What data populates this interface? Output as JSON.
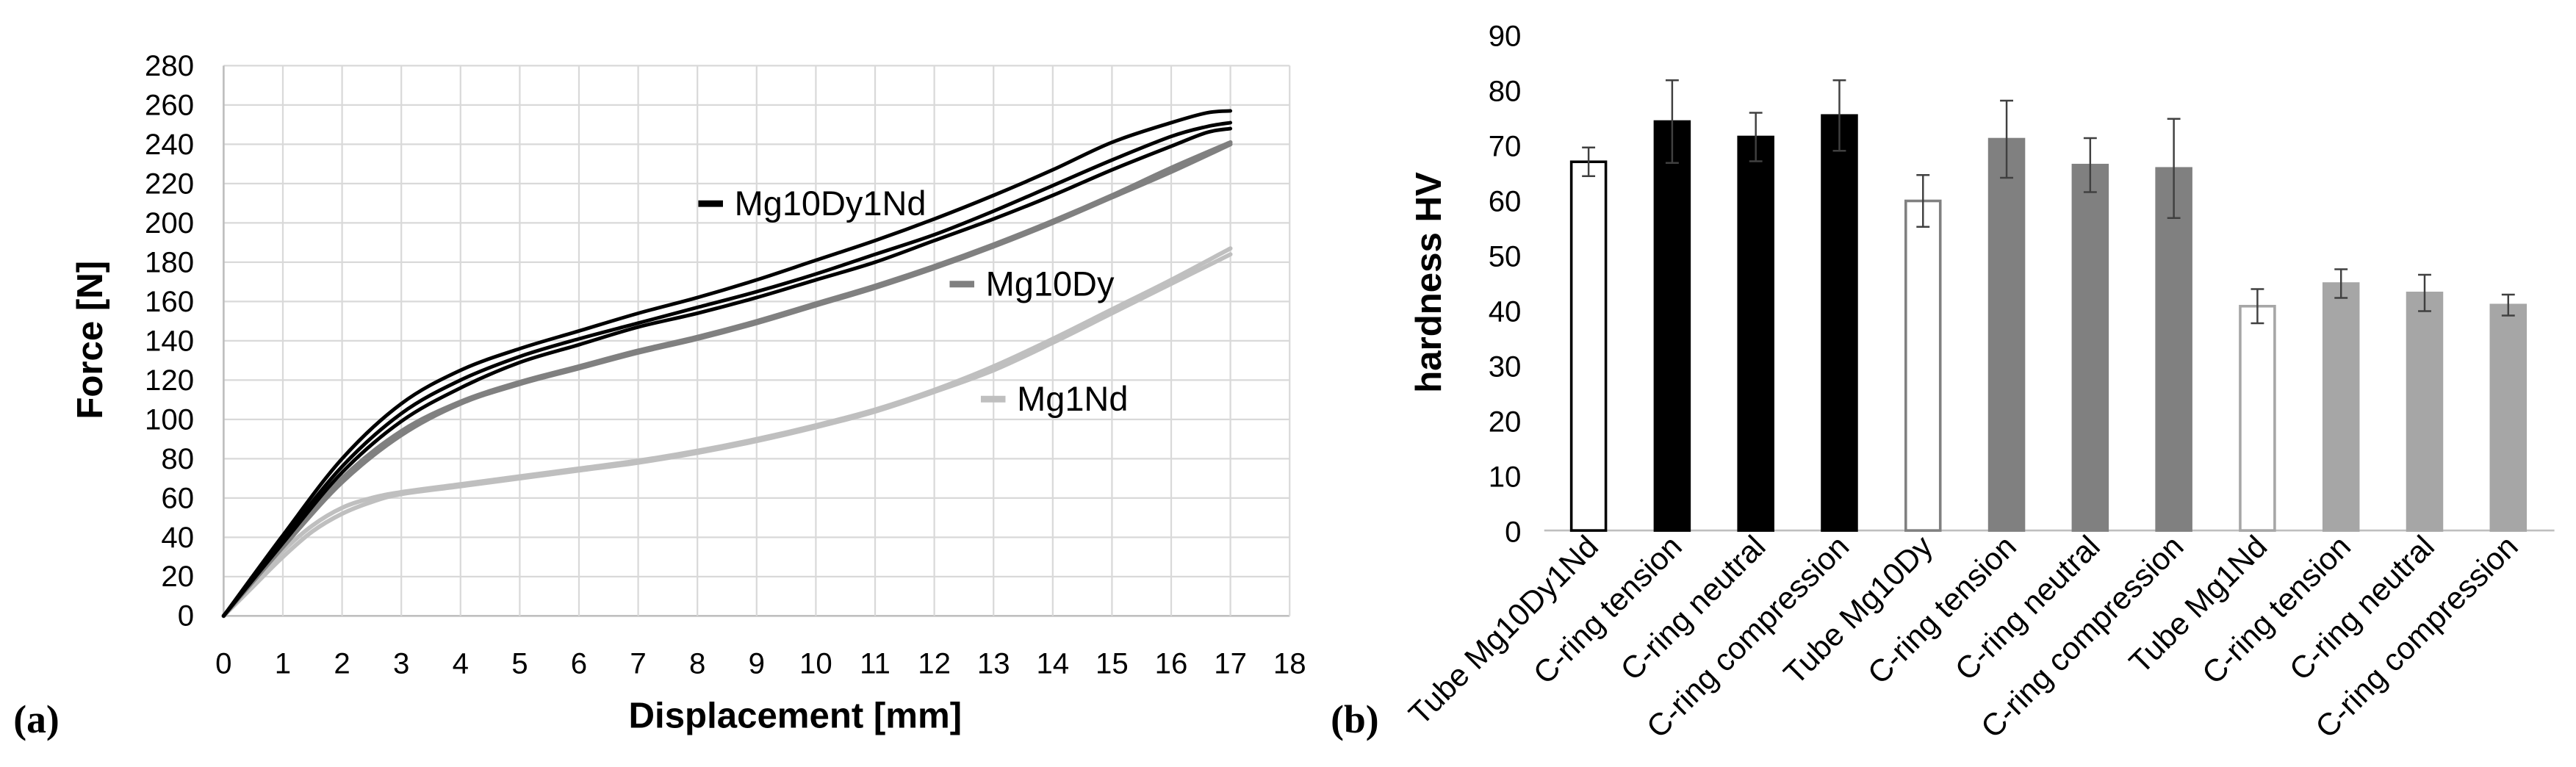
{
  "panels": {
    "a_label": "(a)",
    "b_label": "(b)"
  },
  "chart_data": [
    {
      "type": "line",
      "title": "",
      "xlabel": "Displacement [mm]",
      "ylabel": "Force [N]",
      "xlim": [
        0,
        18
      ],
      "ylim": [
        0,
        280
      ],
      "xticks": [
        0,
        1,
        2,
        3,
        4,
        5,
        6,
        7,
        8,
        9,
        10,
        11,
        12,
        13,
        14,
        15,
        16,
        17,
        18
      ],
      "yticks": [
        0,
        20,
        40,
        60,
        80,
        100,
        120,
        140,
        160,
        180,
        200,
        220,
        240,
        260,
        280
      ],
      "grid": true,
      "legend": "inline",
      "series": [
        {
          "name": "Mg10Dy1Nd",
          "color": "#000000",
          "curves": [
            {
              "x": [
                0,
                1,
                2,
                3,
                4,
                5,
                6,
                7,
                8,
                9,
                10,
                11,
                12,
                13,
                14,
                15,
                16,
                16.6,
                17
              ],
              "y": [
                0,
                41,
                80,
                108,
                125,
                136,
                145,
                154,
                162,
                171,
                181,
                191,
                202,
                214,
                227,
                241,
                251,
                256,
                257
              ]
            },
            {
              "x": [
                0,
                1,
                2,
                3,
                4,
                5,
                6,
                7,
                8,
                9,
                10,
                11,
                12,
                13,
                14,
                15,
                16,
                16.6,
                17
              ],
              "y": [
                0,
                39,
                76,
                103,
                120,
                132,
                141,
                149,
                157,
                165,
                174,
                184,
                194,
                206,
                219,
                232,
                244,
                249,
                251
              ]
            },
            {
              "x": [
                0,
                1,
                2,
                3,
                4,
                5,
                6,
                7,
                8,
                9,
                10,
                11,
                12,
                13,
                14,
                15,
                16,
                16.6,
                17
              ],
              "y": [
                0,
                37,
                73,
                99,
                116,
                129,
                138,
                147,
                154,
                162,
                171,
                180,
                191,
                202,
                214,
                227,
                239,
                246,
                248
              ]
            }
          ]
        },
        {
          "name": "Mg10Dy",
          "color": "#808080",
          "curves": [
            {
              "x": [
                0,
                1,
                2,
                3,
                4,
                5,
                6,
                7,
                8,
                9,
                10,
                11,
                12,
                13,
                14,
                15,
                16,
                17
              ],
              "y": [
                0,
                36,
                70,
                94,
                109,
                119,
                127,
                135,
                142,
                150,
                159,
                168,
                178,
                189,
                201,
                214,
                228,
                241
              ]
            },
            {
              "x": [
                0,
                1,
                2,
                3,
                4,
                5,
                6,
                7,
                8,
                9,
                10,
                11,
                12,
                13,
                14,
                15,
                16,
                17
              ],
              "y": [
                0,
                35,
                68,
                92,
                108,
                118,
                126,
                134,
                141,
                149,
                158,
                167,
                177,
                188,
                200,
                213,
                226,
                240
              ]
            }
          ]
        },
        {
          "name": "Mg1Nd",
          "color": "#bfbfbf",
          "curves": [
            {
              "x": [
                0,
                0.5,
                1,
                1.5,
                2,
                2.5,
                3,
                4,
                5,
                6,
                7,
                8,
                9,
                10,
                11,
                12,
                13,
                14,
                15,
                16,
                17
              ],
              "y": [
                0,
                17,
                33,
                46,
                55,
                60,
                63,
                67,
                71,
                75,
                79,
                84,
                90,
                97,
                105,
                115,
                127,
                141,
                156,
                171,
                187
              ]
            },
            {
              "x": [
                0,
                0.5,
                1,
                1.5,
                2,
                2.5,
                3,
                4,
                5,
                6,
                7,
                8,
                9,
                10,
                11,
                12,
                13,
                14,
                15,
                16,
                17
              ],
              "y": [
                0,
                15,
                30,
                43,
                52,
                58,
                62,
                66,
                70,
                74,
                78,
                83,
                89,
                96,
                104,
                114,
                125,
                139,
                154,
                169,
                184
              ]
            }
          ]
        }
      ]
    },
    {
      "type": "bar",
      "title": "",
      "xlabel": "",
      "ylabel": "hardness HV",
      "ylim": [
        0,
        90
      ],
      "yticks": [
        0,
        10,
        20,
        30,
        40,
        50,
        60,
        70,
        80,
        90
      ],
      "grid": false,
      "categories": [
        "Tube Mg10Dy1Nd",
        "C-ring tension",
        "C-ring neutral",
        "C-ring compression",
        "Tube Mg10Dy",
        "C-ring tension",
        "C-ring neutral",
        "C-ring compression",
        "Tube Mg1Nd",
        "C-ring tension",
        "C-ring neutral",
        "C-ring compression"
      ],
      "values": [
        66.9,
        74.2,
        71.4,
        75.3,
        59.8,
        71.0,
        66.3,
        65.7,
        40.7,
        44.8,
        43.1,
        40.9
      ],
      "errors": [
        2.6,
        7.5,
        4.4,
        6.4,
        4.7,
        7.0,
        4.9,
        9.0,
        3.1,
        2.6,
        3.3,
        1.9
      ],
      "fill": [
        "#ffffff",
        "#000000",
        "#000000",
        "#000000",
        "#ffffff",
        "#808080",
        "#808080",
        "#808080",
        "#ffffff",
        "#a6a6a6",
        "#a6a6a6",
        "#a6a6a6"
      ],
      "stroke": [
        "#000000",
        "#000000",
        "#000000",
        "#000000",
        "#808080",
        "#808080",
        "#808080",
        "#808080",
        "#a6a6a6",
        "#a6a6a6",
        "#a6a6a6",
        "#a6a6a6"
      ]
    }
  ]
}
